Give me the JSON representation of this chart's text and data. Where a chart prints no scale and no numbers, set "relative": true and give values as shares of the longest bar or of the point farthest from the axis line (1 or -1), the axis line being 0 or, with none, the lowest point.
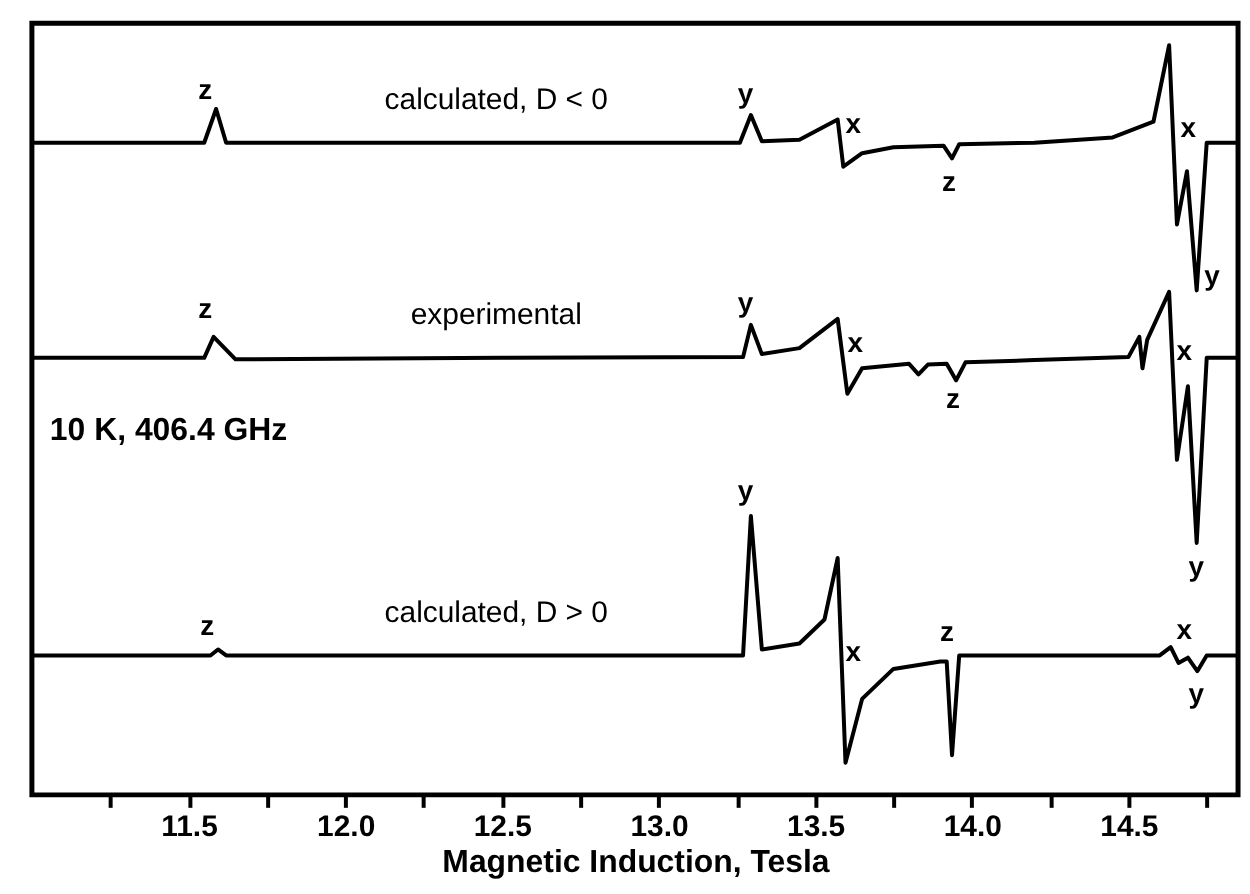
{
  "chart_data": {
    "type": "line",
    "relative": true,
    "xlabel": "Magnetic Induction, Tesla",
    "xlim": [
      11.0,
      14.85
    ],
    "xticks": [
      {
        "value": 11.25,
        "label": null
      },
      11.5,
      {
        "value": 11.75,
        "label": null
      },
      "12.0",
      {
        "value": 12.25,
        "label": null
      },
      12.5,
      {
        "value": 12.75,
        "label": null
      },
      "13.0",
      {
        "value": 13.25,
        "label": null
      },
      13.5,
      {
        "value": 13.75,
        "label": null
      },
      "14.0",
      {
        "value": 14.25,
        "label": null
      },
      14.5,
      {
        "value": 14.75,
        "label": null
      }
    ],
    "grid": false,
    "legend": false,
    "series": [
      {
        "name": "calculated, D < 0",
        "color": "#000000",
        "x": [
          11.0,
          11.55,
          11.588,
          11.62,
          13.26,
          13.295,
          13.33,
          13.45,
          13.572,
          13.59,
          13.65,
          13.75,
          13.91,
          13.937,
          13.96,
          14.2,
          14.45,
          14.58,
          14.63,
          14.655,
          14.687,
          14.718,
          14.75,
          14.85
        ],
        "values": [
          0.87,
          0.87,
          0.915,
          0.87,
          0.87,
          0.907,
          0.872,
          0.874,
          0.901,
          0.838,
          0.856,
          0.864,
          0.866,
          0.849,
          0.868,
          0.87,
          0.877,
          0.898,
          1.0,
          0.761,
          0.832,
          0.673,
          0.87,
          0.87
        ]
      },
      {
        "name": "experimental",
        "color": "#000000",
        "x": [
          11.0,
          11.55,
          11.58,
          11.65,
          12.5,
          13.27,
          13.295,
          13.33,
          13.45,
          13.572,
          13.603,
          13.65,
          13.8,
          13.83,
          13.86,
          13.92,
          13.95,
          13.98,
          14.2,
          14.5,
          14.535,
          14.545,
          14.56,
          14.63,
          14.655,
          14.69,
          14.718,
          14.75,
          14.85
        ],
        "values": [
          0.583,
          0.583,
          0.611,
          0.581,
          0.583,
          0.584,
          0.627,
          0.588,
          0.596,
          0.635,
          0.535,
          0.569,
          0.575,
          0.561,
          0.574,
          0.575,
          0.553,
          0.577,
          0.58,
          0.584,
          0.611,
          0.569,
          0.607,
          0.671,
          0.447,
          0.545,
          0.336,
          0.583,
          0.583
        ]
      },
      {
        "name": "calculated, D > 0",
        "color": "#000000",
        "x": [
          11.0,
          11.57,
          11.594,
          11.62,
          13.27,
          13.295,
          13.33,
          13.45,
          13.53,
          13.572,
          13.597,
          13.65,
          13.75,
          13.9,
          13.92,
          13.937,
          13.96,
          14.6,
          14.635,
          14.66,
          14.69,
          14.72,
          14.75,
          14.85
        ],
        "values": [
          0.186,
          0.186,
          0.194,
          0.186,
          0.186,
          0.372,
          0.194,
          0.202,
          0.234,
          0.316,
          0.043,
          0.128,
          0.168,
          0.178,
          0.178,
          0.053,
          0.186,
          0.186,
          0.197,
          0.176,
          0.183,
          0.165,
          0.186,
          0.186
        ]
      }
    ],
    "annotations": [
      "10 K, 406.4 GHz",
      "z",
      "y",
      "x",
      "z",
      "x",
      "y",
      "z",
      "y",
      "x",
      "z",
      "x",
      "y",
      "z",
      "y",
      "x",
      "z",
      "x",
      "y"
    ]
  }
}
